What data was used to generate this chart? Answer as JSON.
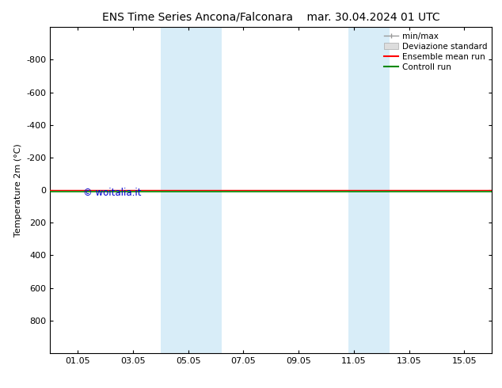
{
  "title_left": "ENS Time Series Ancona/Falconara",
  "title_right": "mar. 30.04.2024 01 UTC",
  "ylabel": "Temperature 2m (°C)",
  "background_color": "#ffffff",
  "plot_bg_color": "#ffffff",
  "ylim": [
    -1000,
    1000
  ],
  "yticks": [
    -800,
    -600,
    -400,
    -200,
    0,
    200,
    400,
    600,
    800
  ],
  "xtick_labels": [
    "01.05",
    "03.05",
    "05.05",
    "07.05",
    "09.05",
    "11.05",
    "13.05",
    "15.05"
  ],
  "xtick_positions": [
    1,
    3,
    5,
    7,
    9,
    11,
    13,
    15
  ],
  "xlim": [
    0,
    16
  ],
  "shaded_bands": [
    {
      "xstart": 4.0,
      "xend": 5.5,
      "color": "#d8edf8"
    },
    {
      "xstart": 5.5,
      "xend": 6.2,
      "color": "#d8edf8"
    },
    {
      "xstart": 10.8,
      "xend": 12.3,
      "color": "#d8edf8"
    }
  ],
  "ensemble_mean_color": "#ff0000",
  "control_run_color": "#008800",
  "ensemble_mean_y": 0.0,
  "control_run_y": 10.0,
  "watermark": "© woitalia.it",
  "watermark_color": "#0000cc",
  "legend_labels": [
    "min/max",
    "Deviazione standard",
    "Ensemble mean run",
    "Controll run"
  ],
  "minmax_line_color": "#999999",
  "devstd_fill_color": "#dddddd",
  "title_fontsize": 10,
  "tick_fontsize": 8,
  "ylabel_fontsize": 8
}
